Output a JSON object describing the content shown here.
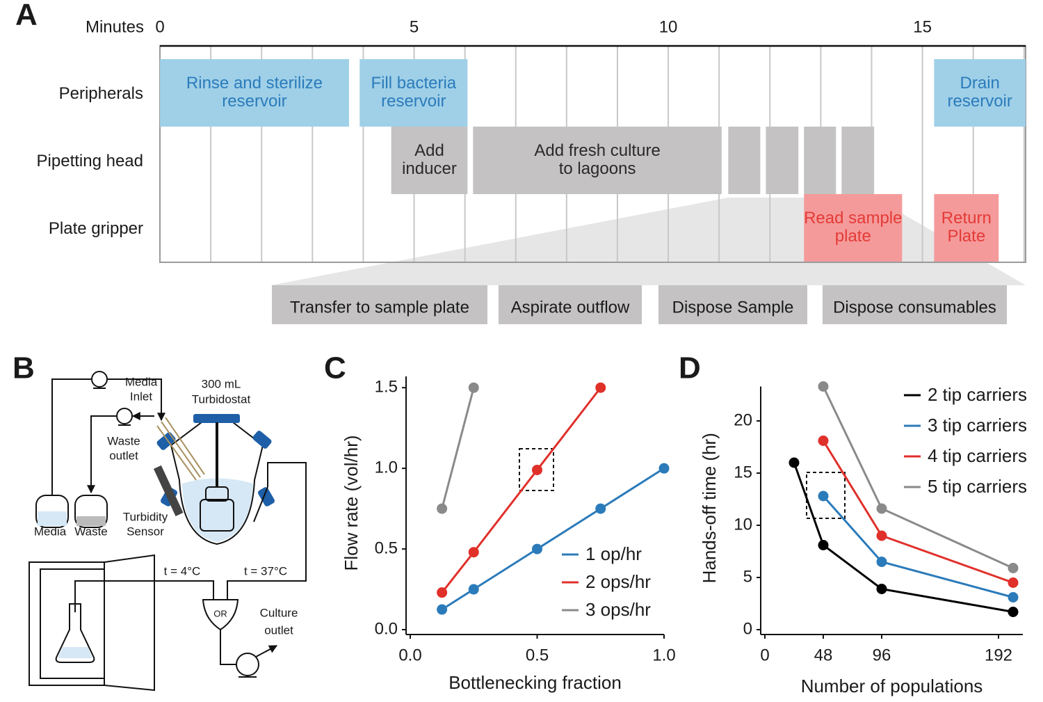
{
  "panel_labels": [
    "A",
    "B",
    "C",
    "D"
  ],
  "chart_data": [
    {
      "type": "gantt",
      "x_label": "Minutes",
      "xlim": [
        0,
        17.03
      ],
      "xticks": [
        0,
        5,
        10,
        15
      ],
      "grid_step": 1,
      "rows": [
        {
          "name": "Peripherals",
          "color": "#9fd0e8",
          "text_color": "#2b7bba",
          "tasks": [
            {
              "label": [
                "Rinse and sterilize",
                "reservoir"
              ],
              "start": 0,
              "end": 3.72
            },
            {
              "label": [
                "Fill bacteria",
                "reservoir"
              ],
              "start": 3.93,
              "end": 6.05
            },
            {
              "label": [
                "Drain",
                "reservoir"
              ],
              "start": 15.23,
              "end": 17.03
            }
          ]
        },
        {
          "name": "Pipetting head",
          "color": "#c4c2c2",
          "text_color": "#2a2a2a",
          "tasks": [
            {
              "label": [
                "Add",
                "inducer"
              ],
              "start": 4.55,
              "end": 6.05
            },
            {
              "label": [
                "Add fresh culture",
                "to lagoons"
              ],
              "start": 6.16,
              "end": 11.05
            },
            {
              "start": 11.18,
              "end": 11.81
            },
            {
              "start": 11.92,
              "end": 12.56
            },
            {
              "start": 12.67,
              "end": 13.3
            },
            {
              "start": 13.41,
              "end": 14.05
            }
          ]
        },
        {
          "name": "Plate gripper",
          "color": "#f59a9b",
          "text_color": "#e33b36",
          "tasks": [
            {
              "label": [
                "Read sample",
                "plate"
              ],
              "start": 12.67,
              "end": 14.6
            },
            {
              "label": [
                "Return",
                "Plate"
              ],
              "start": 15.23,
              "end": 16.5
            }
          ]
        }
      ],
      "zoom_steps": [
        "Transfer to sample plate",
        "Aspirate outflow",
        "Dispose Sample",
        "Dispose consumables"
      ]
    },
    {
      "type": "line",
      "x_label": "Bottlenecking fraction",
      "y_label": "Flow rate (vol/hr)",
      "xlim": [
        0,
        1
      ],
      "ylim": [
        0,
        1.57
      ],
      "xticks": [
        {
          "value": 0,
          "label": "0.0"
        },
        0.5,
        {
          "value": 1,
          "label": "1.0"
        }
      ],
      "yticks": [
        {
          "value": 0,
          "label": "0.0"
        },
        0.5,
        {
          "value": 1,
          "label": "1.0"
        },
        1.5
      ],
      "legend": "lower right",
      "series": [
        {
          "name": "1 op/hr",
          "color": "#2b7bba",
          "x": [
            0.125,
            0.25,
            0.5,
            0.75,
            1.0
          ],
          "values": [
            0.125,
            0.25,
            0.5,
            0.75,
            1.0
          ]
        },
        {
          "name": "2 ops/hr",
          "color": "#e0302a",
          "x": [
            0.125,
            0.25,
            0.5,
            0.75
          ],
          "values": [
            0.23,
            0.48,
            0.99,
            1.5
          ]
        },
        {
          "name": "3 ops/hr",
          "color": "#8a8a8a",
          "x": [
            0.125,
            0.25
          ],
          "values": [
            0.75,
            1.5
          ]
        }
      ]
    },
    {
      "type": "line",
      "x_label": "Number of populations",
      "y_label": "Hands-off time (hr)",
      "xlim": [
        0,
        212
      ],
      "ylim": [
        0,
        23.3
      ],
      "xticks": [
        0,
        48,
        96,
        192
      ],
      "yticks": [
        0,
        5,
        10,
        15,
        20
      ],
      "legend": "upper right",
      "series": [
        {
          "name": "2 tip carriers",
          "color": "#000000",
          "x": [
            24,
            48,
            96,
            204
          ],
          "values": [
            16,
            8.1,
            3.9,
            1.7
          ]
        },
        {
          "name": "3 tip carriers",
          "color": "#2b7bba",
          "x": [
            48,
            96,
            204
          ],
          "values": [
            12.8,
            6.5,
            3.1
          ]
        },
        {
          "name": "4 tip carriers",
          "color": "#e0302a",
          "x": [
            48,
            96,
            204
          ],
          "values": [
            18.1,
            9.0,
            4.5
          ]
        },
        {
          "name": "5 tip carriers",
          "color": "#8a8a8a",
          "x": [
            48,
            96,
            204
          ],
          "values": [
            23.3,
            11.6,
            5.9
          ]
        }
      ]
    }
  ],
  "diagram": {
    "media_inlet": [
      "Media",
      "Inlet"
    ],
    "turbidostat": [
      "300 mL",
      "Turbidostat"
    ],
    "waste_outlet": [
      "Waste",
      "outlet"
    ],
    "turbidity_sensor": [
      "Turbidity",
      "Sensor"
    ],
    "media": "Media",
    "waste": "Waste",
    "t_cold": "t = 4°C",
    "t_warm": "t = 37°C",
    "or_gate": "OR",
    "culture_outlet": [
      "Culture",
      "outlet"
    ]
  }
}
